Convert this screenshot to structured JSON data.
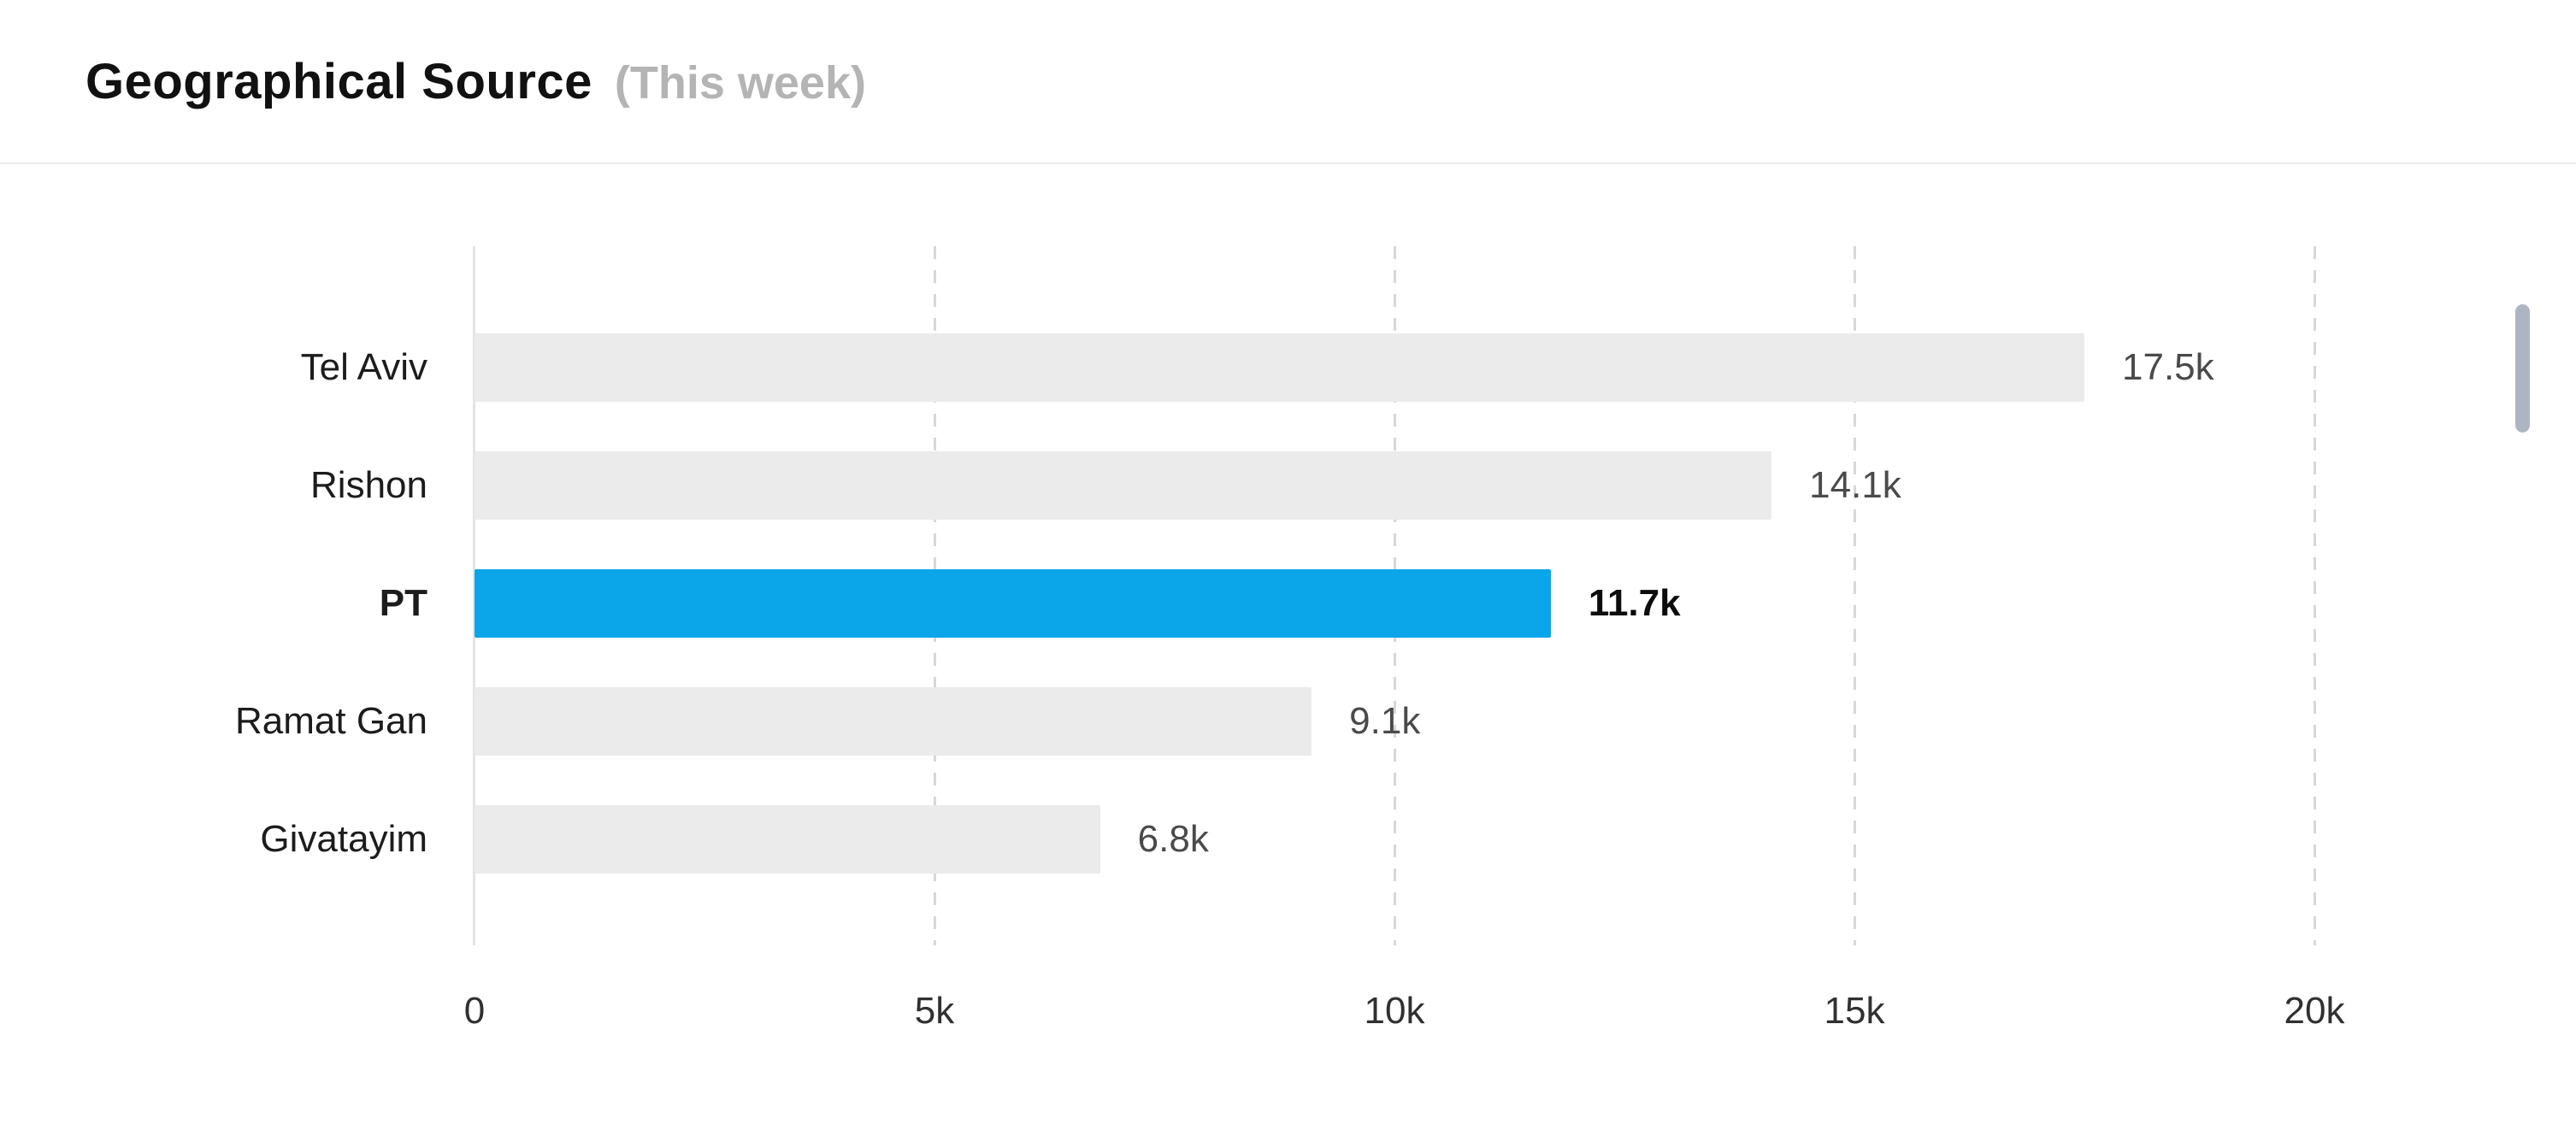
{
  "header": {
    "title": "Geographical Source",
    "subtitle": "(This week)"
  },
  "chart_data": {
    "type": "bar",
    "orientation": "horizontal",
    "title": "Geographical Source",
    "subtitle": "(This week)",
    "categories": [
      "Tel Aviv",
      "Rishon",
      "PT",
      "Ramat Gan",
      "Givatayim"
    ],
    "values": [
      17500,
      14100,
      11700,
      9100,
      6800
    ],
    "value_labels": [
      "17.5k",
      "14.1k",
      "11.7k",
      "9.1k",
      "6.8k"
    ],
    "highlighted_category": "PT",
    "xlim": [
      0,
      20000
    ],
    "x_ticks": [
      "0",
      "5k",
      "10k",
      "15k",
      "20k"
    ],
    "x_tick_values": [
      0,
      5000,
      10000,
      15000,
      20000
    ],
    "grid": "dashed-vertical",
    "legend": "none",
    "colors": {
      "bar_default": "#ebebeb",
      "bar_highlight": "#0ba5e9",
      "value_label": "#4a4a4a",
      "value_label_highlight": "#0c0c0c",
      "axis_line": "#e4e4e4",
      "gridline": "#d7d7d7",
      "subtitle": "#b4b4b4",
      "scrollbar": "#aeb5c2"
    }
  },
  "scrollbar": {
    "present": true
  }
}
